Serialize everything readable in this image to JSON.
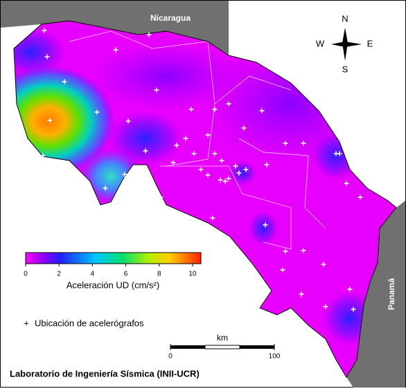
{
  "map": {
    "neighbors": {
      "nicaragua": "Nicaragua",
      "panama": "Panamá"
    },
    "compass": {
      "n": "N",
      "w": "W",
      "e": "E",
      "s": "S"
    },
    "colorbar": {
      "label": "Aceleración UD (cm/s²)",
      "lim": [
        0,
        10.5
      ],
      "ticks": [
        0,
        2,
        4,
        6,
        8,
        10
      ]
    },
    "legend": "Ubicación de acelerógrafos",
    "scale_bar": {
      "unit": "km",
      "ticks": [
        0,
        100
      ]
    },
    "footer": "Laboratorio de Ingeniería Sísmica (INII-UCR)"
  }
}
